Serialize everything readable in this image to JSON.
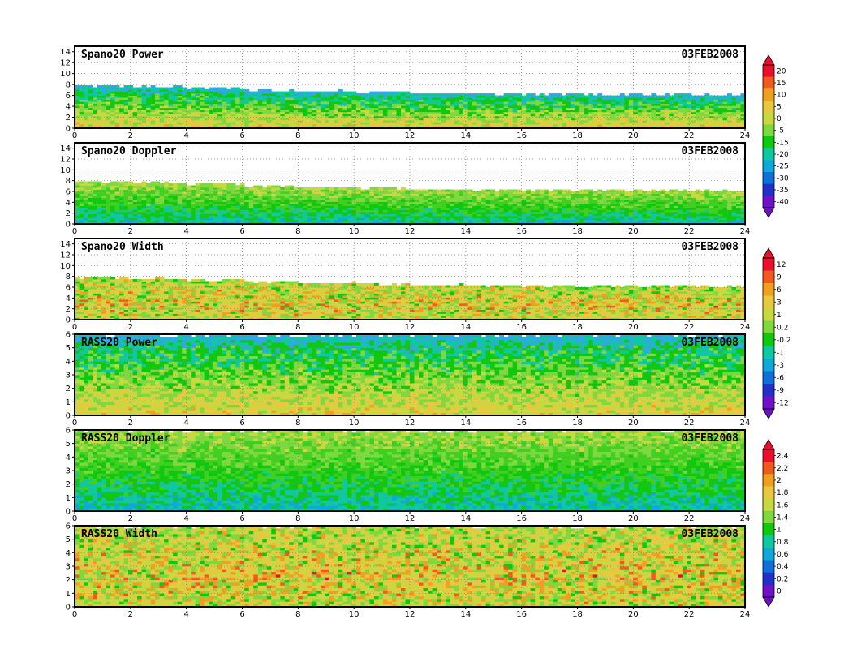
{
  "chart_data": [
    {
      "type": "heatmap",
      "title": "Spano20 Power",
      "date": "03FEB2008",
      "x_ticks": [
        "0",
        "2",
        "4",
        "6",
        "8",
        "10",
        "12",
        "14",
        "16",
        "18",
        "20",
        "22",
        "24"
      ],
      "y_ticks": [
        "0",
        "2",
        "4",
        "6",
        "8",
        "10",
        "12",
        "14"
      ],
      "xlim": [
        0,
        24
      ],
      "ylim": [
        0,
        15
      ],
      "data_top": [
        7.8,
        7.6,
        7.4,
        7.0,
        6.8,
        6.6,
        6.4,
        6.3,
        6.3,
        6.2,
        6.2,
        6.1,
        6.0
      ],
      "colorbar": 0
    },
    {
      "type": "heatmap",
      "title": "Spano20 Doppler",
      "date": "03FEB2008",
      "x_ticks": [
        "0",
        "2",
        "4",
        "6",
        "8",
        "10",
        "12",
        "14",
        "16",
        "18",
        "20",
        "22",
        "24"
      ],
      "y_ticks": [
        "0",
        "2",
        "4",
        "6",
        "8",
        "10",
        "12",
        "14"
      ],
      "xlim": [
        0,
        24
      ],
      "ylim": [
        0,
        15
      ],
      "data_top": [
        7.8,
        7.6,
        7.4,
        7.0,
        6.8,
        6.6,
        6.4,
        6.3,
        6.3,
        6.2,
        6.2,
        6.1,
        6.0
      ],
      "colorbar": 0
    },
    {
      "type": "heatmap",
      "title": "Spano20 Width",
      "date": "03FEB2008",
      "x_ticks": [
        "0",
        "2",
        "4",
        "6",
        "8",
        "10",
        "12",
        "14",
        "16",
        "18",
        "20",
        "22",
        "24"
      ],
      "y_ticks": [
        "0",
        "2",
        "4",
        "6",
        "8",
        "10",
        "12",
        "14"
      ],
      "xlim": [
        0,
        24
      ],
      "ylim": [
        0,
        15
      ],
      "data_top": [
        7.8,
        7.6,
        7.4,
        7.0,
        6.8,
        6.6,
        6.4,
        6.3,
        6.3,
        6.2,
        6.2,
        6.1,
        6.0
      ],
      "colorbar": 1
    },
    {
      "type": "heatmap",
      "title": "RASS20 Power",
      "date": "03FEB2008",
      "x_ticks": [
        "0",
        "2",
        "4",
        "6",
        "8",
        "10",
        "12",
        "14",
        "16",
        "18",
        "20",
        "22",
        "24"
      ],
      "y_ticks": [
        "0",
        "1",
        "2",
        "3",
        "4",
        "5",
        "6"
      ],
      "xlim": [
        0,
        24
      ],
      "ylim": [
        0,
        6
      ],
      "data_top": [
        6,
        6,
        6,
        6,
        6,
        6,
        6,
        6,
        6,
        6,
        6,
        6,
        6
      ],
      "colorbar": 1
    },
    {
      "type": "heatmap",
      "title": "RASS20 Doppler",
      "date": "03FEB2008",
      "x_ticks": [
        "0",
        "2",
        "4",
        "6",
        "8",
        "10",
        "12",
        "14",
        "16",
        "18",
        "20",
        "22",
        "24"
      ],
      "y_ticks": [
        "0",
        "1",
        "2",
        "3",
        "4",
        "5",
        "6"
      ],
      "xlim": [
        0,
        24
      ],
      "ylim": [
        0,
        6
      ],
      "data_top": [
        6,
        6,
        6,
        6,
        6,
        6,
        6,
        6,
        6,
        6,
        6,
        6,
        6
      ],
      "colorbar": 2
    },
    {
      "type": "heatmap",
      "title": "RASS20 Width",
      "date": "03FEB2008",
      "x_ticks": [
        "0",
        "2",
        "4",
        "6",
        "8",
        "10",
        "12",
        "14",
        "16",
        "18",
        "20",
        "22",
        "24"
      ],
      "y_ticks": [
        "0",
        "1",
        "2",
        "3",
        "4",
        "5",
        "6"
      ],
      "xlim": [
        0,
        24
      ],
      "ylim": [
        0,
        6
      ],
      "data_top": [
        6,
        6,
        6,
        6,
        6,
        6,
        6,
        6,
        6,
        6,
        6,
        6,
        6
      ],
      "colorbar": 2
    }
  ],
  "colorbars": [
    {
      "labels": [
        "20",
        "15",
        "10",
        "5",
        "0",
        "-5",
        "-15",
        "-20",
        "-25",
        "-30",
        "-35",
        "-40"
      ],
      "colors": [
        "#e8102c",
        "#f05a1e",
        "#f0a020",
        "#e8c840",
        "#c8d840",
        "#80d840",
        "#10c810",
        "#10c8a0",
        "#10a8d8",
        "#1070d8",
        "#2030c8",
        "#7010c8"
      ]
    },
    {
      "labels": [
        "12",
        "9",
        "6",
        "3",
        "1",
        "0.2",
        "-0.2",
        "-1",
        "-3",
        "-6",
        "-9",
        "-12"
      ],
      "colors": [
        "#e8102c",
        "#f05a1e",
        "#f0a020",
        "#e8c840",
        "#c8d840",
        "#80d840",
        "#10c810",
        "#10c8a0",
        "#10a8d8",
        "#1070d8",
        "#2030c8",
        "#7010c8"
      ]
    },
    {
      "labels": [
        "2.4",
        "2.2",
        "2",
        "1.8",
        "1.6",
        "1.4",
        "1",
        "0.8",
        "0.6",
        "0.4",
        "0.2",
        "0"
      ],
      "colors": [
        "#e8102c",
        "#f05a1e",
        "#f0a020",
        "#e8c840",
        "#c8d840",
        "#80d840",
        "#10c810",
        "#10c8a0",
        "#10a8d8",
        "#1070d8",
        "#2030c8",
        "#7010c8"
      ]
    }
  ],
  "palettes": {
    "power": [
      "#30a8e0",
      "#10c8a0",
      "#10c810",
      "#80d840",
      "#c8d840",
      "#e8c840",
      "#f0a020"
    ],
    "doppler": [
      "#10a8d8",
      "#10c8a0",
      "#10c810",
      "#40d020",
      "#80d840",
      "#c8d840"
    ],
    "width": [
      "#10c810",
      "#80d840",
      "#c8d840",
      "#e8c840",
      "#f0a020",
      "#f05a1e",
      "#e8102c"
    ]
  }
}
